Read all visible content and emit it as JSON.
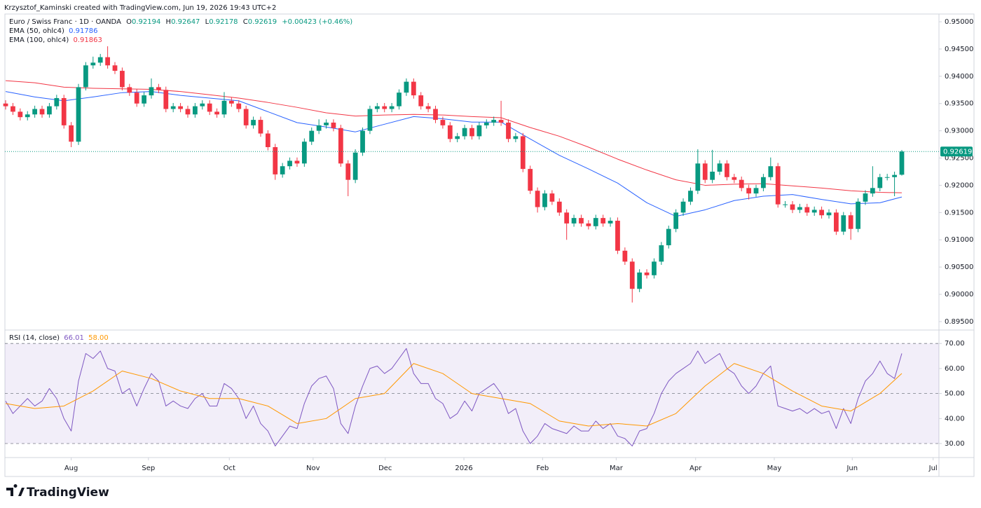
{
  "header": {
    "credit": "Krzysztof_Kaminski created with TradingView.com, Jun 19, 2026 19:43 UTC+2"
  },
  "footer": {
    "logo": "TradingView"
  },
  "chart_data": [
    {
      "type": "candlestick",
      "title": "Euro / Swiss Franc · 1D · OANDA",
      "ohlc_labels": [
        "O",
        "H",
        "L",
        "C"
      ],
      "change_label": "+0.00423 (+0.46%)",
      "up_color": "#089981",
      "down_color": "#f23645",
      "xlim": [
        -0.1,
        128.1
      ],
      "ylim": [
        0.89345,
        0.95142
      ],
      "yticks": [
        {
          "value": 0.895,
          "label": "0.89500"
        },
        {
          "value": 0.9,
          "label": "0.90000"
        },
        {
          "value": 0.905,
          "label": "0.90500"
        },
        {
          "value": 0.91,
          "label": "0.91000"
        },
        {
          "value": 0.915,
          "label": "0.91500"
        },
        {
          "value": 0.92,
          "label": "0.92000"
        },
        {
          "value": 0.925,
          "label": "0.92500"
        },
        {
          "value": 0.93,
          "label": "0.93000"
        },
        {
          "value": 0.935,
          "label": "0.93500"
        },
        {
          "value": 0.94,
          "label": "0.94000"
        },
        {
          "value": 0.945,
          "label": "0.94500"
        },
        {
          "value": 0.95,
          "label": "0.95000"
        }
      ],
      "grid": false,
      "last_price_line": true,
      "open": [
        0.935,
        0.9345,
        0.9335,
        0.9325,
        0.933,
        0.934,
        0.933,
        0.9345,
        0.936,
        0.931,
        0.928,
        0.938,
        0.942,
        0.9425,
        0.9435,
        0.942,
        0.941,
        0.938,
        0.937,
        0.935,
        0.9365,
        0.938,
        0.9375,
        0.934,
        0.9345,
        0.934,
        0.933,
        0.9345,
        0.935,
        0.9335,
        0.933,
        0.9355,
        0.935,
        0.934,
        0.931,
        0.932,
        0.9295,
        0.927,
        0.922,
        0.9235,
        0.9245,
        0.924,
        0.928,
        0.93,
        0.931,
        0.9315,
        0.9305,
        0.924,
        0.921,
        0.926,
        0.93,
        0.934,
        0.9345,
        0.934,
        0.9345,
        0.937,
        0.939,
        0.9365,
        0.9345,
        0.934,
        0.932,
        0.931,
        0.9285,
        0.929,
        0.9305,
        0.929,
        0.931,
        0.9315,
        0.932,
        0.9315,
        0.9285,
        0.929,
        0.923,
        0.919,
        0.916,
        0.9185,
        0.917,
        0.915,
        0.913,
        0.914,
        0.913,
        0.9125,
        0.914,
        0.913,
        0.9135,
        0.908,
        0.906,
        0.901,
        0.904,
        0.9035,
        0.906,
        0.909,
        0.912,
        0.915,
        0.917,
        0.919,
        0.924,
        0.921,
        0.9225,
        0.924,
        0.9215,
        0.921,
        0.9195,
        0.9185,
        0.9195,
        0.9215,
        0.9235,
        0.9165,
        0.9165,
        0.9155,
        0.916,
        0.915,
        0.9155,
        0.9145,
        0.915,
        0.9115,
        0.9145,
        0.912,
        0.917,
        0.9185,
        0.9195,
        0.9215,
        0.9215,
        0.92194
      ],
      "high": [
        0.9356,
        0.9351,
        0.9341,
        0.9336,
        0.9346,
        0.9346,
        0.9351,
        0.9366,
        0.9366,
        0.9316,
        0.9386,
        0.9426,
        0.9436,
        0.9441,
        0.9455,
        0.9426,
        0.9416,
        0.9386,
        0.9376,
        0.9371,
        0.9396,
        0.9386,
        0.9381,
        0.9351,
        0.9351,
        0.9346,
        0.9351,
        0.9356,
        0.9356,
        0.9341,
        0.9371,
        0.9361,
        0.9356,
        0.9346,
        0.9326,
        0.9326,
        0.9301,
        0.9276,
        0.9241,
        0.9251,
        0.9251,
        0.9286,
        0.9306,
        0.9321,
        0.9321,
        0.9321,
        0.9311,
        0.9246,
        0.9266,
        0.9306,
        0.9346,
        0.9351,
        0.9351,
        0.9351,
        0.9376,
        0.9396,
        0.9396,
        0.9371,
        0.9351,
        0.9346,
        0.9326,
        0.9316,
        0.9296,
        0.9311,
        0.9311,
        0.9316,
        0.9321,
        0.9326,
        0.9355,
        0.9321,
        0.9296,
        0.9296,
        0.9236,
        0.9196,
        0.9191,
        0.9191,
        0.9176,
        0.9156,
        0.9146,
        0.9146,
        0.9136,
        0.9146,
        0.9146,
        0.9141,
        0.9141,
        0.9086,
        0.9066,
        0.9046,
        0.9046,
        0.9066,
        0.9096,
        0.9126,
        0.9156,
        0.9176,
        0.9196,
        0.9266,
        0.9246,
        0.9265,
        0.9246,
        0.9246,
        0.9221,
        0.9216,
        0.9201,
        0.9201,
        0.9221,
        0.9251,
        0.9241,
        0.9171,
        0.9171,
        0.9166,
        0.9166,
        0.9161,
        0.9161,
        0.9156,
        0.9156,
        0.9151,
        0.9151,
        0.9176,
        0.9191,
        0.9235,
        0.9221,
        0.9221,
        0.9225,
        0.92647
      ],
      "low": [
        0.9339,
        0.9329,
        0.9319,
        0.9319,
        0.9324,
        0.9324,
        0.9324,
        0.9339,
        0.9304,
        0.927,
        0.9274,
        0.9374,
        0.9414,
        0.9419,
        0.9414,
        0.9404,
        0.9374,
        0.9364,
        0.9344,
        0.9344,
        0.9359,
        0.9369,
        0.9334,
        0.9334,
        0.9334,
        0.9324,
        0.9324,
        0.9339,
        0.9329,
        0.9324,
        0.9324,
        0.9344,
        0.9334,
        0.9304,
        0.9304,
        0.9289,
        0.9264,
        0.921,
        0.9214,
        0.9229,
        0.9234,
        0.9234,
        0.9274,
        0.9294,
        0.9304,
        0.9299,
        0.9234,
        0.918,
        0.9204,
        0.9254,
        0.9294,
        0.9334,
        0.9334,
        0.9334,
        0.9339,
        0.9364,
        0.9359,
        0.9339,
        0.9334,
        0.9314,
        0.9304,
        0.9279,
        0.9279,
        0.9284,
        0.9284,
        0.9284,
        0.9304,
        0.9309,
        0.9309,
        0.9279,
        0.9279,
        0.9224,
        0.9184,
        0.915,
        0.9154,
        0.9164,
        0.9144,
        0.91,
        0.9124,
        0.9124,
        0.9119,
        0.9119,
        0.9124,
        0.9124,
        0.9074,
        0.9054,
        0.8985,
        0.9004,
        0.9029,
        0.9029,
        0.9054,
        0.9084,
        0.9114,
        0.9144,
        0.9164,
        0.9184,
        0.9204,
        0.9204,
        0.9219,
        0.9209,
        0.9204,
        0.9189,
        0.9174,
        0.9179,
        0.9189,
        0.9209,
        0.9159,
        0.9159,
        0.9149,
        0.9149,
        0.9144,
        0.9144,
        0.9139,
        0.9139,
        0.9109,
        0.9109,
        0.91,
        0.9114,
        0.9164,
        0.9179,
        0.9189,
        0.9209,
        0.918,
        0.92178
      ],
      "close": [
        0.9345,
        0.9335,
        0.9325,
        0.933,
        0.934,
        0.933,
        0.9345,
        0.936,
        0.931,
        0.928,
        0.938,
        0.942,
        0.9425,
        0.9435,
        0.942,
        0.941,
        0.938,
        0.937,
        0.935,
        0.9365,
        0.938,
        0.9375,
        0.934,
        0.9345,
        0.934,
        0.933,
        0.9345,
        0.935,
        0.9335,
        0.933,
        0.9355,
        0.935,
        0.934,
        0.931,
        0.932,
        0.9295,
        0.927,
        0.922,
        0.9235,
        0.9245,
        0.924,
        0.928,
        0.93,
        0.931,
        0.9315,
        0.9305,
        0.924,
        0.921,
        0.926,
        0.93,
        0.934,
        0.9345,
        0.934,
        0.9345,
        0.937,
        0.939,
        0.9365,
        0.9345,
        0.934,
        0.932,
        0.931,
        0.9285,
        0.929,
        0.9305,
        0.929,
        0.931,
        0.9315,
        0.932,
        0.9315,
        0.9285,
        0.929,
        0.923,
        0.919,
        0.916,
        0.9185,
        0.917,
        0.915,
        0.913,
        0.914,
        0.913,
        0.9125,
        0.914,
        0.913,
        0.9135,
        0.908,
        0.906,
        0.901,
        0.904,
        0.9035,
        0.906,
        0.909,
        0.912,
        0.915,
        0.917,
        0.919,
        0.924,
        0.921,
        0.9225,
        0.924,
        0.9215,
        0.921,
        0.9195,
        0.9185,
        0.9195,
        0.9215,
        0.9235,
        0.9165,
        0.9165,
        0.9155,
        0.916,
        0.915,
        0.9155,
        0.9145,
        0.915,
        0.9115,
        0.9145,
        0.912,
        0.917,
        0.9185,
        0.9195,
        0.9215,
        0.9215,
        0.9219,
        0.92619
      ],
      "series": [
        {
          "name": "EMA (50, ohlc4)",
          "color": "#2962ff",
          "x": [
            0,
            4,
            8,
            12,
            16,
            20,
            24,
            28,
            32,
            36,
            40,
            44,
            48,
            52,
            56,
            60,
            64,
            68,
            72,
            76,
            80,
            84,
            88,
            92,
            96,
            100,
            104,
            108,
            112,
            116,
            120,
            123
          ],
          "values": [
            0.9372,
            0.9362,
            0.9355,
            0.9362,
            0.937,
            0.9372,
            0.9365,
            0.936,
            0.9355,
            0.9335,
            0.9315,
            0.9307,
            0.9298,
            0.9312,
            0.9326,
            0.9322,
            0.9316,
            0.9316,
            0.9285,
            0.9255,
            0.923,
            0.9204,
            0.9168,
            0.9143,
            0.9155,
            0.9172,
            0.918,
            0.9183,
            0.9174,
            0.9166,
            0.9168,
            0.91786
          ]
        },
        {
          "name": "EMA (100, ohlc4)",
          "color": "#f23645",
          "x": [
            0,
            4,
            8,
            12,
            16,
            20,
            24,
            28,
            32,
            36,
            40,
            44,
            48,
            52,
            56,
            60,
            64,
            68,
            72,
            76,
            80,
            84,
            88,
            92,
            96,
            100,
            104,
            108,
            112,
            116,
            120,
            123
          ],
          "values": [
            0.9392,
            0.9388,
            0.938,
            0.9378,
            0.9377,
            0.9376,
            0.9372,
            0.9366,
            0.936,
            0.9352,
            0.9343,
            0.9333,
            0.9327,
            0.9329,
            0.933,
            0.9329,
            0.9326,
            0.9324,
            0.9306,
            0.929,
            0.927,
            0.9248,
            0.9228,
            0.921,
            0.92,
            0.9202,
            0.9203,
            0.9199,
            0.9195,
            0.919,
            0.9187,
            0.91863
          ]
        }
      ]
    },
    {
      "type": "line",
      "title": "RSI (14, close)",
      "xlim": [
        -0.1,
        128.1
      ],
      "xticks": [
        {
          "value": 9.0,
          "label": "Aug"
        },
        {
          "value": 19.6,
          "label": "Sep"
        },
        {
          "value": 30.7,
          "label": "Oct"
        },
        {
          "value": 42.2,
          "label": "Nov"
        },
        {
          "value": 52.1,
          "label": "Dec"
        },
        {
          "value": 62.9,
          "label": "2026"
        },
        {
          "value": 73.7,
          "label": "Feb"
        },
        {
          "value": 83.8,
          "label": "Mar"
        },
        {
          "value": 94.7,
          "label": "Apr"
        },
        {
          "value": 105.5,
          "label": "May"
        },
        {
          "value": 116.2,
          "label": "Jun"
        },
        {
          "value": 127.3,
          "label": "Jul"
        }
      ],
      "ylim": [
        24.4,
        75.1
      ],
      "yticks": [
        {
          "value": 30,
          "label": "30.00"
        },
        {
          "value": 40,
          "label": "40.00"
        },
        {
          "value": 50,
          "label": "50.00"
        },
        {
          "value": 60,
          "label": "60.00"
        },
        {
          "value": 70,
          "label": "70.00"
        }
      ],
      "band": [
        30,
        70
      ],
      "band_color": "#7e57c2",
      "levels": [
        70,
        50,
        30
      ],
      "series": [
        {
          "name": "RSI (14, close)",
          "color": "#7e57c2",
          "values": [
            47,
            42,
            45,
            48,
            45,
            47,
            52,
            48,
            40,
            35,
            55,
            66,
            64,
            67,
            60,
            59,
            50,
            52,
            45,
            52,
            58,
            55,
            45,
            47,
            45,
            44,
            48,
            50,
            45,
            45,
            54,
            52,
            48,
            40,
            45,
            38,
            35,
            29,
            33,
            37,
            36,
            46,
            53,
            56,
            57,
            52,
            38,
            34,
            45,
            53,
            60,
            61,
            58,
            60,
            64,
            68,
            58,
            54,
            54,
            48,
            46,
            40,
            42,
            47,
            43,
            50,
            52,
            54,
            50,
            42,
            44,
            35,
            30,
            33,
            38,
            36,
            35,
            34,
            37,
            35,
            35,
            39,
            36,
            38,
            33,
            32,
            29,
            35,
            36,
            42,
            50,
            55,
            58,
            60,
            62,
            67,
            62,
            64,
            66,
            60,
            58,
            53,
            50,
            53,
            58,
            61,
            45,
            44,
            43,
            44,
            42,
            44,
            42,
            43,
            36,
            44,
            38,
            48,
            55,
            58,
            63,
            58,
            56,
            66.01
          ]
        },
        {
          "color": "#ff9800",
          "x": [
            0,
            4,
            8,
            12,
            16,
            20,
            24,
            28,
            32,
            36,
            40,
            44,
            48,
            52,
            56,
            60,
            64,
            68,
            72,
            76,
            80,
            84,
            88,
            92,
            96,
            100,
            104,
            108,
            112,
            116,
            120,
            123
          ],
          "values": [
            46,
            44,
            45,
            51,
            59,
            56,
            51,
            48,
            48,
            45,
            38,
            40,
            48,
            50,
            62,
            58,
            50,
            48,
            46,
            39,
            37,
            38,
            37,
            42,
            53,
            62,
            58,
            51,
            45,
            43,
            50,
            58
          ],
          "value_labels": [
            null,
            null,
            null,
            null,
            null,
            null,
            null,
            null,
            null,
            null,
            null,
            null,
            null,
            null,
            null,
            null,
            null,
            null,
            null,
            null,
            null,
            null,
            null,
            null,
            null,
            null,
            null,
            null,
            null,
            null,
            null,
            "58.00"
          ]
        }
      ]
    }
  ]
}
